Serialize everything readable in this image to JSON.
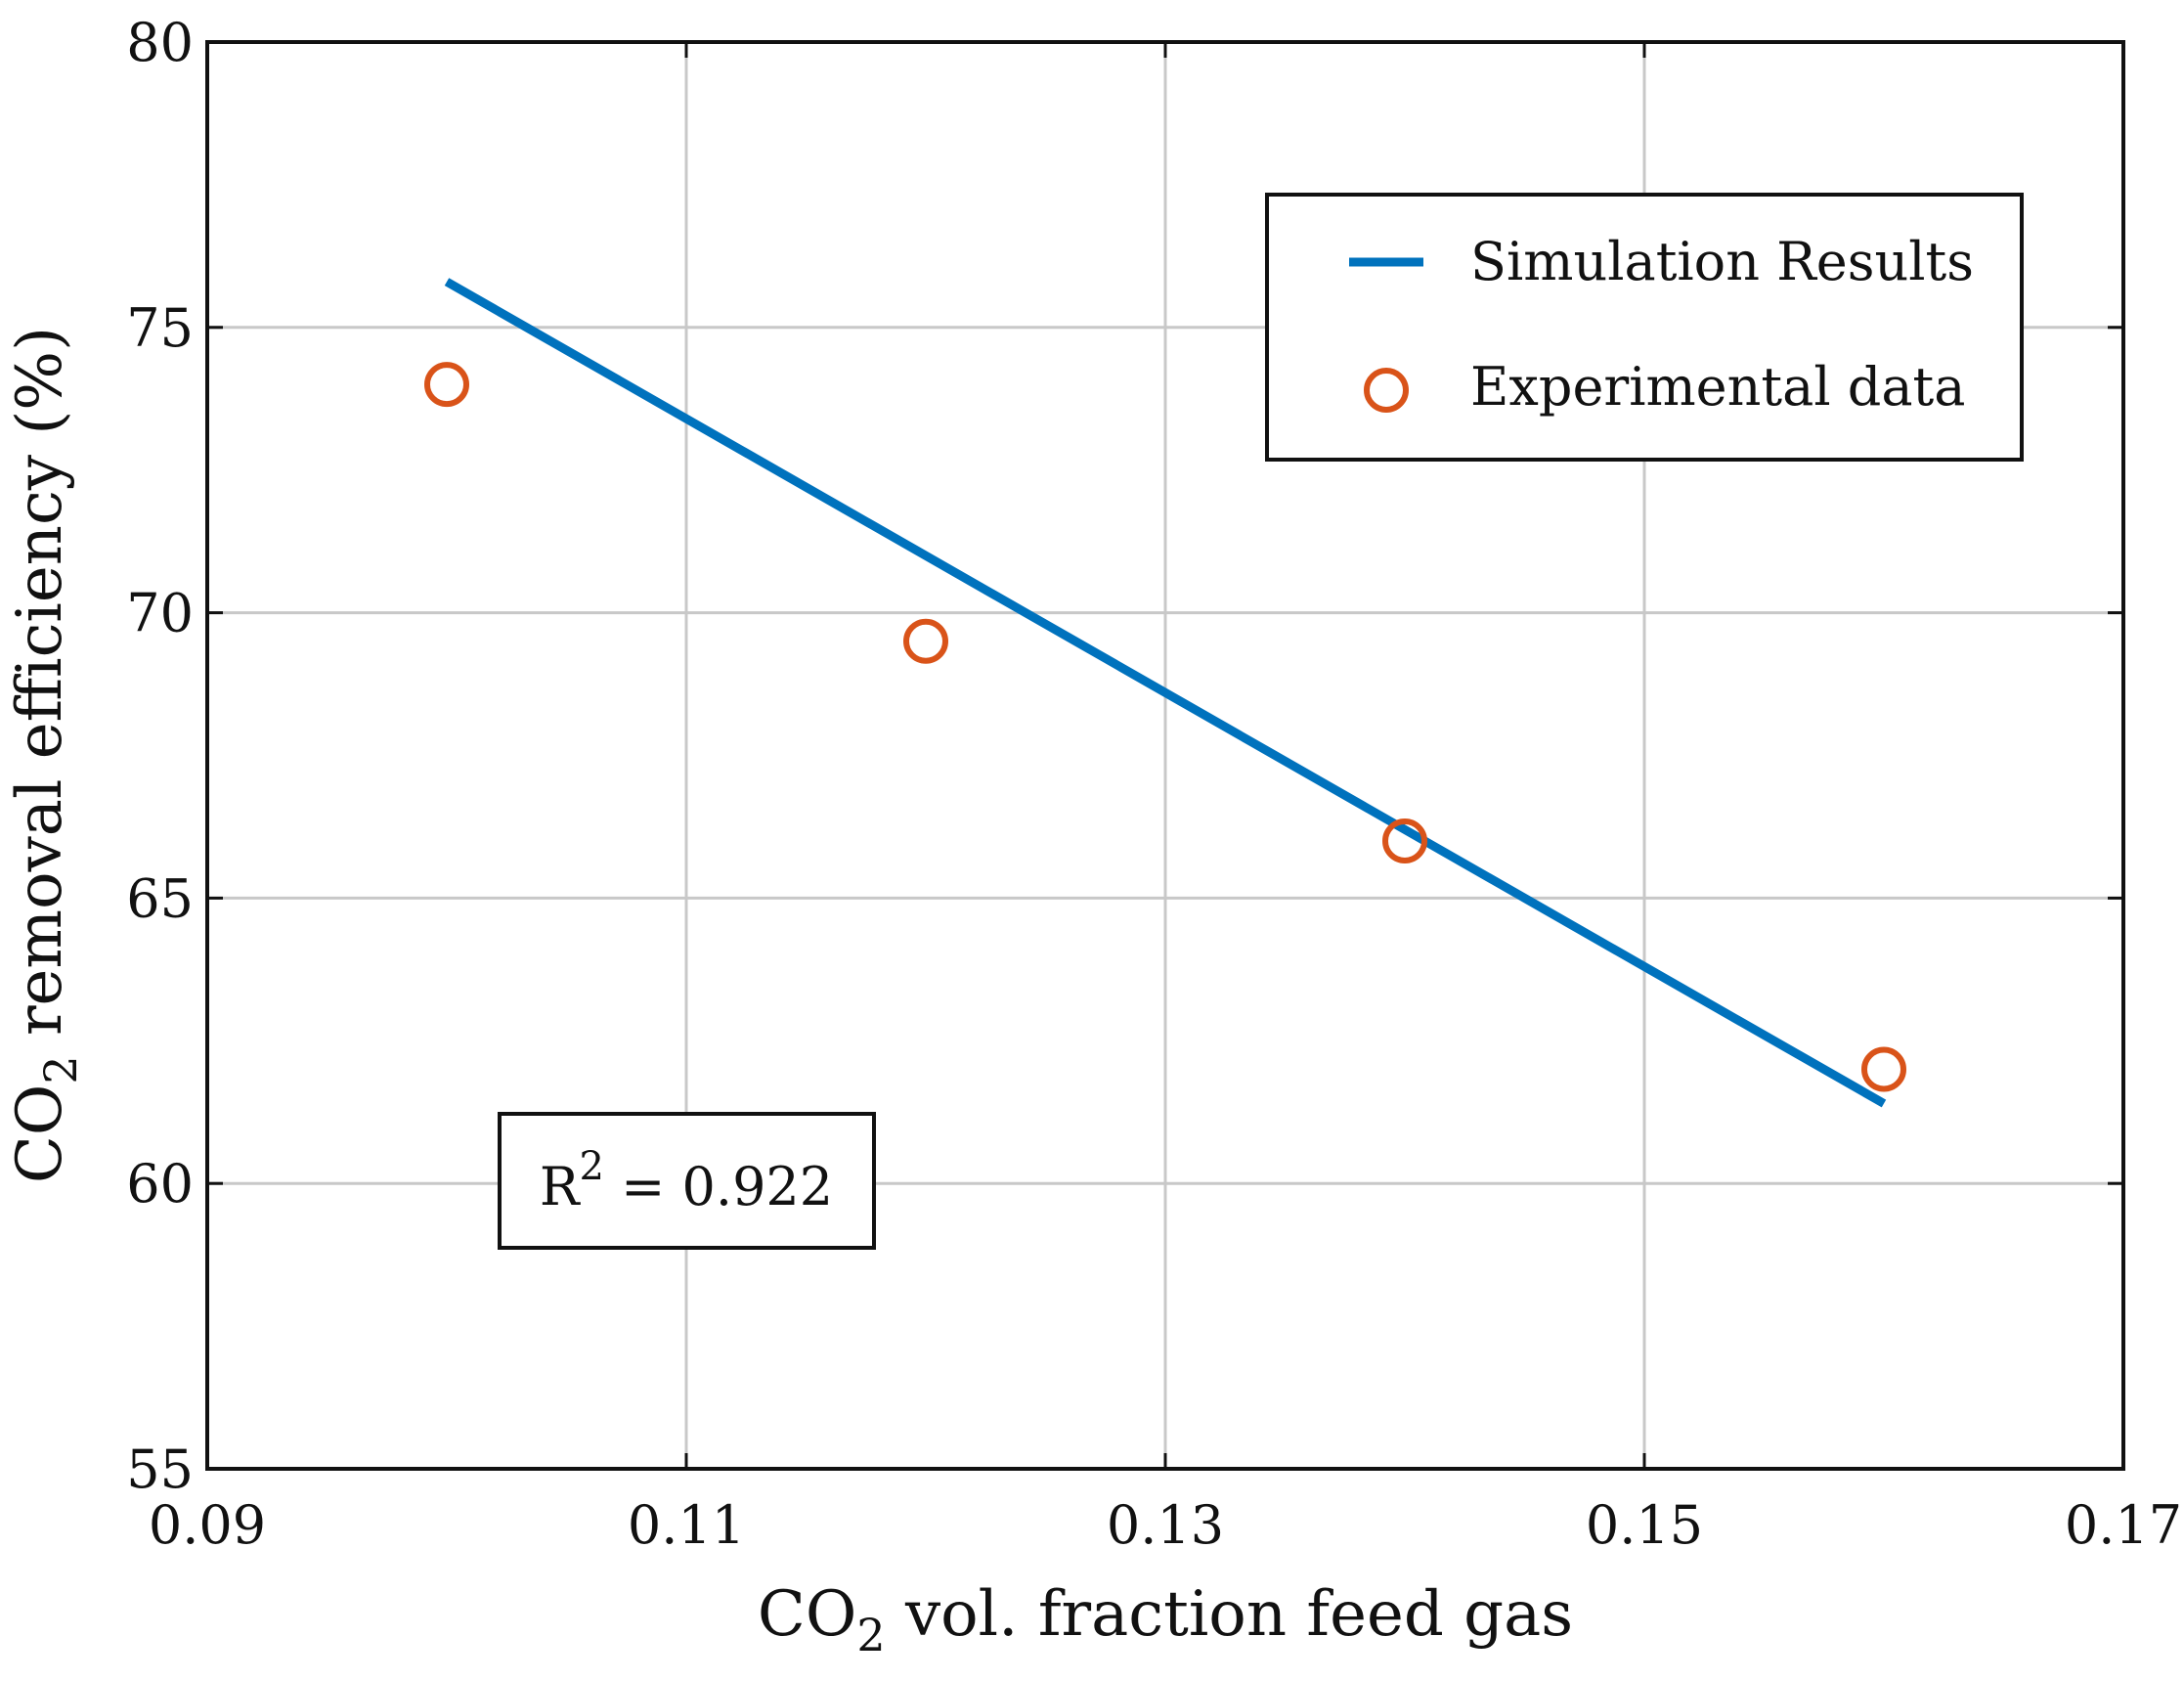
{
  "chart_data": {
    "type": "line",
    "xlabel": {
      "main": "CO",
      "sub": "2",
      "rest": " vol. fraction feed gas"
    },
    "ylabel": {
      "main": "CO",
      "sub": "2",
      "rest": " removal efficiency (%)"
    },
    "xlim": [
      0.09,
      0.17
    ],
    "ylim": [
      55,
      80
    ],
    "xticks": [
      0.09,
      0.11,
      0.13,
      0.15,
      0.17
    ],
    "xtick_labels": [
      "0.09",
      "0.11",
      "0.13",
      "0.15",
      "0.17"
    ],
    "yticks": [
      55,
      60,
      65,
      70,
      75,
      80
    ],
    "ytick_labels": [
      "55",
      "60",
      "65",
      "70",
      "75",
      "80"
    ],
    "grid": true,
    "legend_position": "top-right",
    "series": [
      {
        "name": "Simulation Results",
        "kind": "line",
        "color": "#0072BD",
        "x": [
          0.1,
          0.16
        ],
        "y": [
          75.8,
          61.4
        ]
      },
      {
        "name": "Experimental data",
        "kind": "scatter",
        "marker": "open-circle",
        "color": "#D95319",
        "x": [
          0.1,
          0.12,
          0.14,
          0.16
        ],
        "y": [
          74.0,
          69.5,
          66.0,
          62.0
        ]
      }
    ],
    "annotation": {
      "prefix": "R",
      "sup": "2",
      "rest": " = 0.922"
    }
  }
}
